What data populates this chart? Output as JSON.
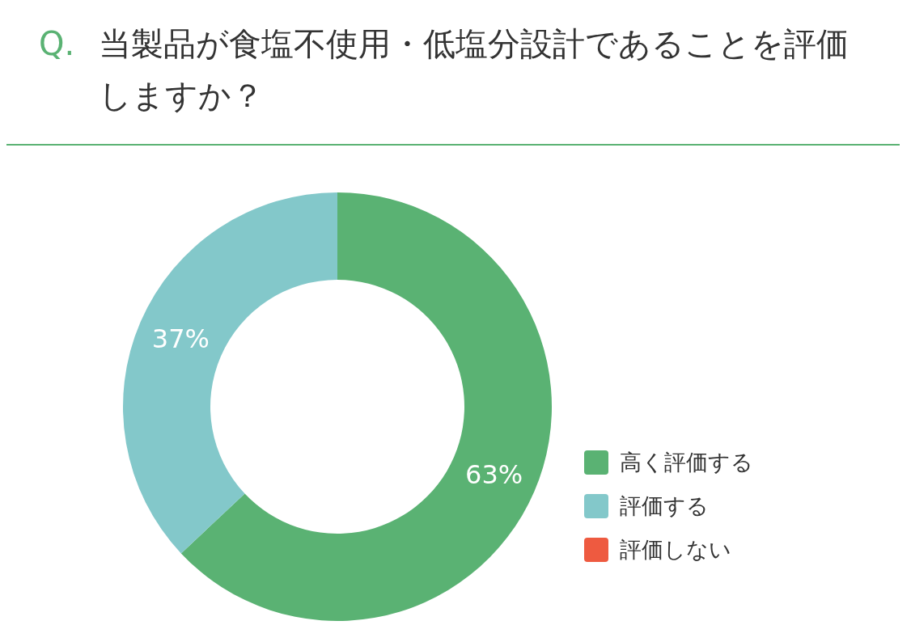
{
  "chart_data": {
    "type": "donut",
    "title": "Q. 当製品が食塩不使用・低塩分設計であることを評価しますか？",
    "categories": [
      "高く評価する",
      "評価する",
      "評価しない"
    ],
    "values": [
      63,
      37,
      0
    ],
    "colors": [
      "#5ab273",
      "#83c8ca",
      "#ee5a40"
    ],
    "value_labels": [
      "63%",
      "37%",
      null
    ],
    "legend": "right"
  }
}
